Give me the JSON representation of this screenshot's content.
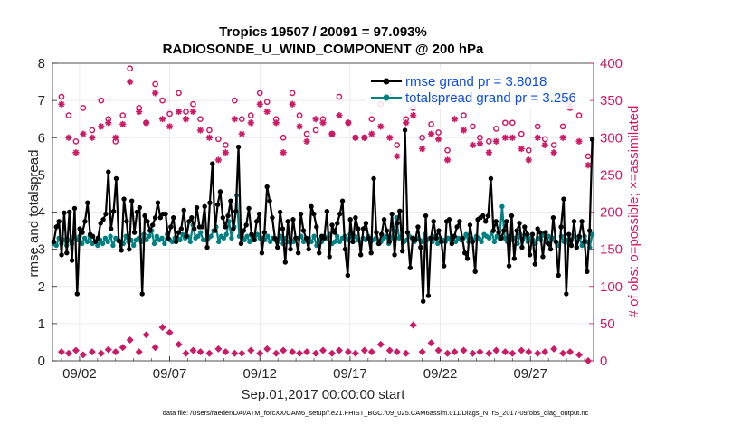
{
  "chart_data": {
    "type": "line",
    "title": "Tropics 19507 / 20091 = 97.093%",
    "subtitle": "RADIOSONDE_U_WIND_COMPONENT @ 200 hPa",
    "xlabel": "Sep.01,2017 00:00:00 start",
    "ylabel": "rmse and totalspread",
    "y2label": "# of obs: o=possible; ×=assimilated",
    "ylim": [
      0,
      8
    ],
    "y2lim": [
      0,
      400
    ],
    "xlim": [
      0.5,
      30.5
    ],
    "yticks": [
      "0",
      "1",
      "2",
      "3",
      "4",
      "5",
      "6",
      "7",
      "8"
    ],
    "y2ticks": [
      "0",
      "50",
      "100",
      "150",
      "200",
      "250",
      "300",
      "350",
      "400"
    ],
    "xticks": [
      {
        "label": "09/02",
        "day": 2
      },
      {
        "label": "09/07",
        "day": 7
      },
      {
        "label": "09/12",
        "day": 12
      },
      {
        "label": "09/17",
        "day": 17
      },
      {
        "label": "09/22",
        "day": 22
      },
      {
        "label": "09/27",
        "day": 27
      }
    ],
    "grid": true,
    "footnote": "data file: /Users/raeder/DAI/ATM_forcXX/CAM6_setup/f.e21.FHIST_BGC.f09_025.CAM6assim.011/Diags_NTrS_2017-09/obs_diag_output.nc",
    "legend_position": "top-right",
    "series": [
      {
        "name": "rmse grand pr = 3.8018",
        "color": "#000000",
        "values": [
          3.2,
          3.6,
          3.75,
          2.85,
          3.98,
          2.9,
          4.0,
          2.7,
          4.1,
          1.8,
          3.55,
          3.45,
          3.75,
          4.25,
          3.4,
          3.35,
          3.2,
          3.3,
          3.7,
          3.8,
          3.95,
          5.08,
          3.55,
          4.02,
          4.9,
          3.22,
          2.97,
          4.35,
          3.75,
          3.0,
          4.3,
          3.45,
          4.0,
          4.12,
          1.8,
          3.9,
          3.75,
          3.5,
          3.65,
          3.85,
          4.25,
          3.85,
          3.95,
          3.95,
          3.3,
          3.6,
          3.85,
          3.2,
          3.45,
          3.55,
          4.05,
          3.35,
          3.75,
          3.85,
          3.55,
          4.12,
          3.6,
          3.6,
          4.15,
          3.05,
          4.25,
          5.3,
          3.5,
          4.2,
          4.55,
          3.85,
          3.6,
          3.9,
          4.3,
          3.55,
          4.02,
          5.75,
          3.15,
          3.5,
          3.65,
          4.1,
          3.4,
          3.25,
          3.75,
          3.95,
          2.9,
          3.45,
          4.68,
          4.3,
          3.85,
          3.3,
          3.05,
          4.0,
          3.55,
          2.65,
          3.75,
          3.0,
          3.8,
          3.3,
          2.9,
          3.95,
          3.5,
          3.3,
          3.0,
          4.15,
          3.95,
          3.6,
          2.9,
          3.35,
          3.3,
          4.02,
          2.8,
          3.65,
          3.45,
          3.7,
          3.95,
          4.3,
          3.0,
          2.3,
          3.8,
          3.2,
          3.85,
          3.55,
          2.85,
          3.55,
          3.7,
          3.3,
          2.9,
          4.9,
          3.45,
          3.15,
          3.4,
          3.8,
          3.5,
          3.2,
          3.95,
          2.85,
          3.7,
          4.03,
          2.95,
          6.2,
          3.45,
          2.5,
          3.3,
          3.25,
          3.6,
          3.05,
          1.6,
          3.9,
          1.75,
          3.3,
          3.75,
          3.3,
          3.5,
          3.2,
          2.55,
          3.75,
          3.8,
          3.15,
          3.35,
          3.6,
          3.75,
          3.3,
          2.9,
          2.75,
          3.65,
          3.2,
          2.4,
          3.8,
          3.85,
          3.9,
          3.75,
          3.9,
          4.9,
          3.5,
          3.75,
          3.45,
          3.3,
          3.5,
          3.75,
          2.55,
          3.9,
          2.75,
          3.5,
          3.7,
          3.05,
          3.6,
          3.4,
          2.85,
          3.4,
          2.6,
          3.55,
          3.45,
          2.8,
          3.45,
          3.15,
          3.0,
          3.85,
          3.2,
          2.3,
          3.6,
          4.35,
          1.8,
          3.4,
          3.1,
          3.75,
          3.05,
          3.35,
          3.75,
          3.2,
          2.4,
          3.5,
          5.95
        ]
      },
      {
        "name": "totalspread grand pr = 3.256",
        "color": "#008080",
        "values": [
          3.15,
          3.1,
          3.3,
          3.15,
          3.25,
          3.1,
          3.25,
          3.15,
          3.35,
          3.25,
          3.35,
          3.15,
          3.3,
          3.2,
          3.35,
          3.15,
          3.2,
          3.1,
          3.25,
          3.15,
          3.3,
          3.2,
          3.35,
          3.1,
          3.3,
          3.25,
          3.2,
          3.15,
          3.35,
          3.2,
          3.25,
          3.1,
          3.25,
          3.3,
          3.2,
          3.4,
          3.25,
          3.35,
          3.5,
          3.15,
          3.35,
          3.25,
          3.3,
          3.15,
          3.4,
          3.25,
          3.2,
          3.3,
          3.3,
          3.25,
          3.4,
          3.3,
          3.35,
          3.2,
          3.65,
          3.3,
          3.35,
          3.45,
          3.25,
          3.25,
          3.3,
          3.35,
          3.5,
          3.6,
          3.2,
          3.35,
          3.3,
          3.4,
          3.75,
          3.3,
          3.6,
          4.45,
          3.35,
          3.45,
          3.25,
          3.35,
          3.2,
          3.35,
          3.25,
          3.4,
          3.3,
          3.3,
          3.25,
          3.35,
          3.2,
          3.3,
          3.25,
          3.2,
          3.35,
          3.15,
          3.3,
          3.2,
          3.25,
          3.2,
          3.3,
          3.3,
          3.35,
          3.2,
          3.25,
          3.3,
          3.2,
          3.35,
          3.1,
          3.25,
          3.2,
          3.35,
          3.3,
          3.4,
          3.15,
          3.2,
          3.35,
          3.2,
          3.3,
          3.35,
          3.25,
          3.4,
          3.2,
          3.35,
          3.25,
          3.2,
          3.3,
          3.25,
          3.35,
          3.2,
          3.25,
          3.3,
          3.15,
          3.2,
          3.3,
          3.35,
          3.15,
          3.3,
          3.5,
          3.85,
          3.3,
          3.35,
          3.2,
          3.25,
          3.35,
          3.3,
          3.2,
          3.3,
          3.25,
          3.2,
          3.4,
          3.25,
          3.3,
          3.2,
          3.35,
          3.15,
          3.3,
          3.25,
          3.2,
          3.3,
          3.25,
          3.35,
          3.2,
          3.3,
          3.25,
          3.3,
          3.4,
          3.2,
          3.3,
          3.25,
          3.35,
          3.3,
          3.2,
          3.4,
          3.35,
          3.3,
          3.45,
          3.2,
          3.35,
          3.3,
          4.15,
          3.3,
          3.2,
          3.35,
          3.25,
          3.3,
          3.15,
          3.4,
          3.25,
          3.35,
          3.2,
          3.3,
          3.25,
          3.15,
          3.3,
          3.25,
          3.4,
          3.2,
          3.35,
          3.25,
          3.3,
          3.2,
          3.1,
          3.35,
          3.2,
          3.25,
          3.15,
          3.25,
          3.35,
          3.2,
          3.3,
          3.1,
          3.35,
          3.2,
          3.05,
          3.4
        ]
      },
      {
        "name": "possible",
        "color": "#cc1a66",
        "axis": "right",
        "x": [
          1.0,
          1.4,
          1.8,
          2.2,
          2.7,
          3.2,
          3.6,
          4.0,
          4.4,
          4.8,
          5.3,
          5.7,
          6.2,
          6.6,
          7.0,
          7.5,
          7.9,
          8.3,
          8.7,
          9.2,
          9.7,
          10.1,
          10.6,
          11.0,
          11.5,
          12.0,
          12.4,
          12.9,
          13.3,
          13.8,
          14.2,
          14.6,
          15.1,
          15.5,
          16.0,
          16.4,
          16.9,
          17.3,
          17.8,
          18.2,
          18.7,
          19.2,
          19.6,
          20.1,
          20.5,
          21.0,
          21.5,
          21.9,
          22.4,
          22.8,
          23.3,
          23.8,
          24.2,
          24.7,
          25.1,
          25.6,
          26.0,
          26.5,
          26.9,
          27.4,
          27.8,
          28.3,
          28.8,
          29.2,
          29.7,
          30.2
        ],
        "values": [
          355,
          330,
          295,
          340,
          310,
          350,
          325,
          295,
          330,
          393,
          340,
          320,
          372,
          350,
          332,
          360,
          335,
          345,
          325,
          310,
          298,
          290,
          350,
          325,
          330,
          360,
          348,
          325,
          300,
          360,
          330,
          305,
          310,
          325,
          305,
          355,
          320,
          300,
          300,
          325,
          345,
          355,
          290,
          325,
          340,
          300,
          318,
          307,
          283,
          355,
          330,
          315,
          300,
          295,
          312,
          320,
          320,
          305,
          283,
          315,
          298,
          290,
          315,
          348,
          330,
          275
        ]
      },
      {
        "name": "assimilated",
        "color": "#cc1a66",
        "axis": "right",
        "x": [
          1.0,
          1.4,
          1.8,
          2.2,
          2.7,
          3.2,
          3.6,
          4.0,
          4.4,
          4.8,
          5.3,
          5.7,
          6.2,
          6.6,
          7.0,
          7.5,
          7.9,
          8.3,
          8.7,
          9.2,
          9.7,
          10.1,
          10.6,
          11.0,
          11.5,
          12.0,
          12.4,
          12.9,
          13.3,
          13.8,
          14.2,
          14.6,
          15.1,
          15.5,
          16.0,
          16.4,
          16.9,
          17.3,
          17.8,
          18.2,
          18.7,
          19.2,
          19.6,
          20.1,
          20.5,
          21.0,
          21.5,
          21.9,
          22.4,
          22.8,
          23.3,
          23.8,
          24.2,
          24.7,
          25.1,
          25.6,
          26.0,
          26.5,
          26.9,
          27.4,
          27.8,
          28.3,
          28.8,
          29.2,
          29.7,
          30.2
        ],
        "values": [
          345,
          300,
          280,
          305,
          300,
          315,
          320,
          300,
          318,
          375,
          335,
          320,
          360,
          325,
          315,
          335,
          325,
          335,
          310,
          300,
          270,
          280,
          325,
          305,
          320,
          345,
          335,
          320,
          280,
          345,
          315,
          295,
          325,
          320,
          305,
          330,
          320,
          300,
          300,
          305,
          315,
          300,
          275,
          320,
          330,
          285,
          305,
          298,
          270,
          325,
          310,
          290,
          292,
          280,
          295,
          300,
          300,
          285,
          270,
          300,
          290,
          280,
          300,
          340,
          295,
          263
        ]
      },
      {
        "name": "obs count (lower)",
        "color": "#cc1a66",
        "axis": "right",
        "x": [
          1.0,
          1.4,
          1.8,
          2.2,
          2.7,
          3.2,
          3.6,
          4.0,
          4.4,
          4.8,
          5.3,
          5.7,
          6.2,
          6.6,
          7.0,
          7.5,
          7.9,
          8.3,
          8.7,
          9.2,
          9.7,
          10.1,
          10.6,
          11.0,
          11.5,
          12.0,
          12.4,
          12.9,
          13.3,
          13.8,
          14.2,
          14.6,
          15.1,
          15.5,
          16.0,
          16.4,
          16.9,
          17.3,
          17.8,
          18.2,
          18.7,
          19.2,
          19.6,
          20.1,
          20.5,
          21.0,
          21.5,
          21.9,
          22.4,
          22.8,
          23.3,
          23.8,
          24.2,
          24.7,
          25.1,
          25.6,
          26.0,
          26.5,
          26.9,
          27.4,
          27.8,
          28.3,
          28.8,
          29.2,
          29.7,
          30.2
        ],
        "values": [
          12,
          10,
          14,
          8,
          12,
          10,
          15,
          12,
          18,
          28,
          12,
          35,
          18,
          45,
          38,
          22,
          10,
          14,
          12,
          10,
          16,
          12,
          10,
          10,
          14,
          10,
          16,
          10,
          14,
          12,
          10,
          12,
          10,
          14,
          10,
          14,
          12,
          10,
          14,
          12,
          22,
          14,
          12,
          10,
          48,
          12,
          24,
          14,
          10,
          12,
          14,
          10,
          12,
          10,
          14,
          12,
          10,
          14,
          12,
          10,
          12,
          16,
          10,
          12,
          8,
          0
        ]
      }
    ]
  }
}
